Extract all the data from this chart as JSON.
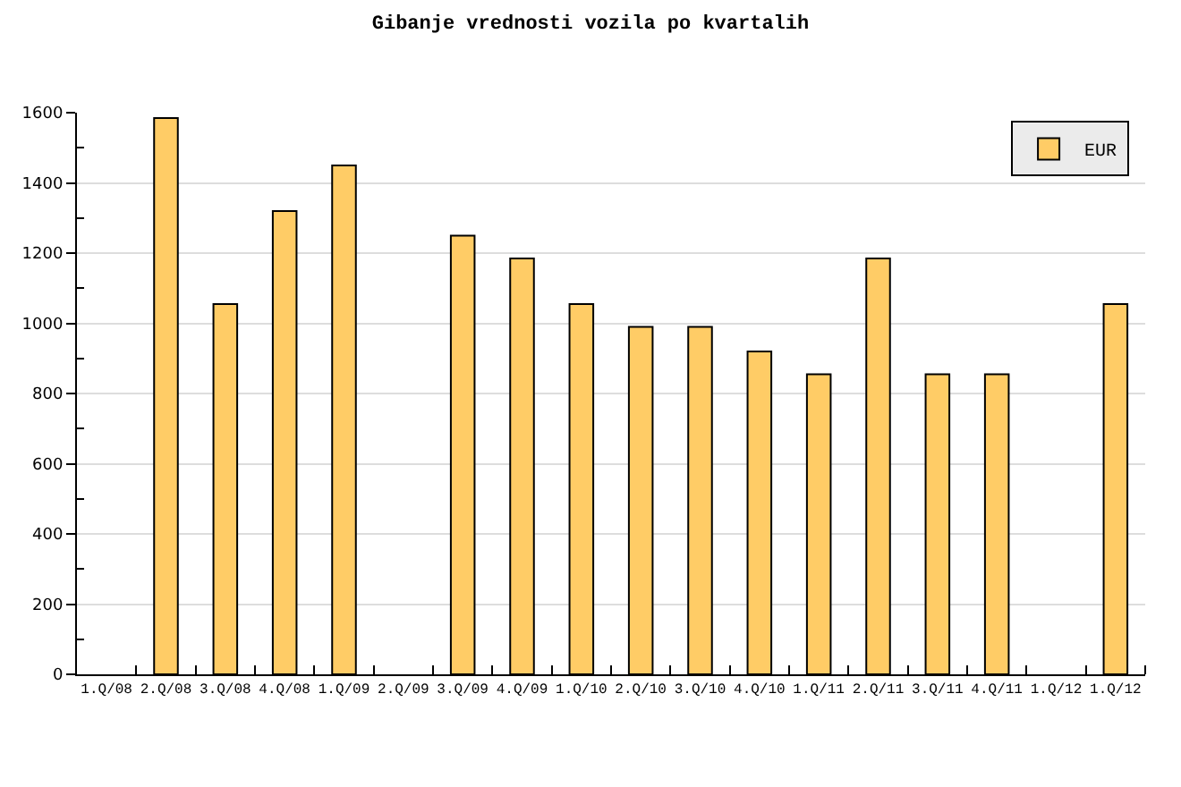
{
  "chart_data": {
    "type": "bar",
    "title": "Gibanje vrednosti vozila po kvartalih",
    "categories": [
      "1.Q/08",
      "2.Q/08",
      "3.Q/08",
      "4.Q/08",
      "1.Q/09",
      "2.Q/09",
      "3.Q/09",
      "4.Q/09",
      "1.Q/10",
      "2.Q/10",
      "3.Q/10",
      "4.Q/10",
      "1.Q/11",
      "2.Q/11",
      "3.Q/11",
      "4.Q/11",
      "1.Q/12",
      "1.Q/12"
    ],
    "series": [
      {
        "name": "EUR",
        "color": "#ffcc66",
        "values": [
          null,
          1585,
          1055,
          1320,
          1450,
          null,
          1250,
          1185,
          1055,
          990,
          990,
          920,
          855,
          1185,
          855,
          855,
          null,
          1055
        ]
      }
    ],
    "ylim": [
      0,
      1600
    ],
    "yticks": [
      0,
      {
        "value": 100,
        "label": null
      },
      200,
      {
        "value": 300,
        "label": null
      },
      400,
      {
        "value": 500,
        "label": null
      },
      600,
      {
        "value": 700,
        "label": null
      },
      800,
      {
        "value": 900,
        "label": null
      },
      1000,
      {
        "value": 1100,
        "label": null
      },
      1200,
      {
        "value": 1300,
        "label": null
      },
      1400,
      {
        "value": 1500,
        "label": null
      },
      1600
    ],
    "grid": "y",
    "legend": "top right"
  }
}
